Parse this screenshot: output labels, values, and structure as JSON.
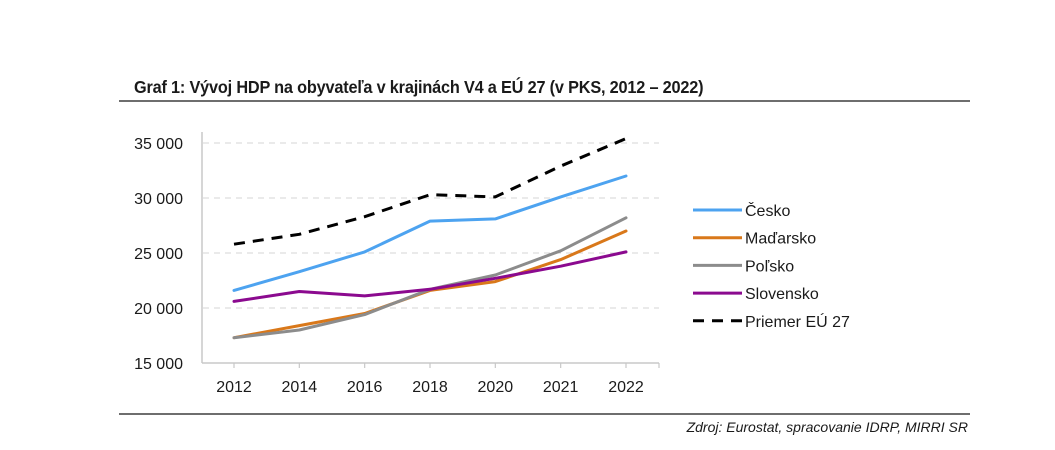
{
  "title": "Graf 1: Vývoj HDP na obyvateľa v krajinách V4 a EÚ 27 (v PKS, 2012 – 2022)",
  "source": "Zdroj: Eurostat, spracovanie IDRP, MIRRI SR",
  "chart_data": {
    "type": "line",
    "title": "Graf 1: Vývoj HDP na obyvateľa v krajinách V4 a EÚ 27 (v PKS, 2012 – 2022)",
    "xlabel": "",
    "ylabel": "",
    "categories": [
      "2012",
      "2014",
      "2016",
      "2018",
      "2020",
      "2021",
      "2022"
    ],
    "ylim": [
      15000,
      35000
    ],
    "yticks": [
      15000,
      20000,
      25000,
      30000,
      35000
    ],
    "ytick_labels": [
      "15 000",
      "20 000",
      "25 000",
      "30 000",
      "35 000"
    ],
    "grid": "horizontal-dashed",
    "legend_position": "right",
    "series": [
      {
        "name": "Česko",
        "color": "#4DA3F0",
        "style": "solid",
        "values": [
          21600,
          23300,
          25100,
          27900,
          28100,
          30100,
          32000
        ]
      },
      {
        "name": "Maďarsko",
        "color": "#D9781A",
        "style": "solid",
        "values": [
          17300,
          18400,
          19500,
          21600,
          22400,
          24400,
          27000
        ]
      },
      {
        "name": "Poľsko",
        "color": "#8C8C8C",
        "style": "solid",
        "values": [
          17300,
          18000,
          19400,
          21700,
          23000,
          25200,
          28200
        ]
      },
      {
        "name": "Slovensko",
        "color": "#8B0A8F",
        "style": "solid",
        "values": [
          20600,
          21500,
          21100,
          21700,
          22700,
          23800,
          25100
        ]
      },
      {
        "name": "Priemer EÚ 27",
        "color": "#000000",
        "style": "dashed",
        "values": [
          25800,
          26700,
          28300,
          30300,
          30100,
          32900,
          35400
        ]
      }
    ]
  }
}
